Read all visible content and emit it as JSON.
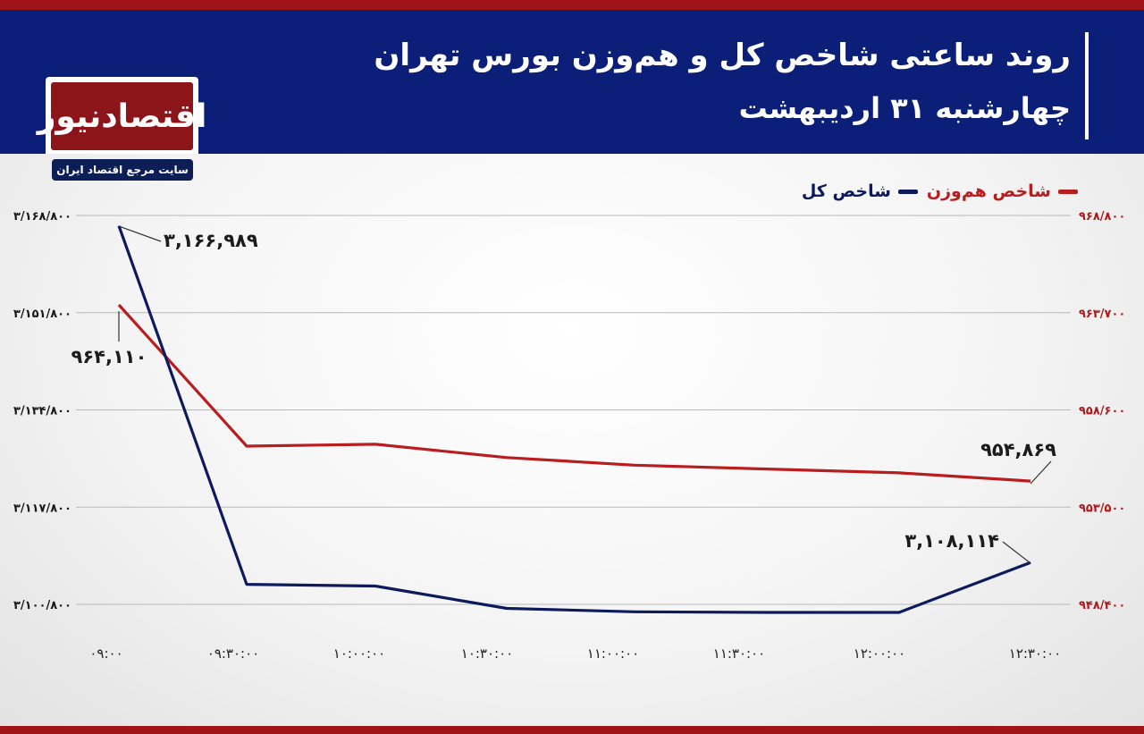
{
  "header": {
    "title": "روند ساعتی شاخص کل و هم‌وزن بورس تهران",
    "subtitle": "چهارشنبه ۳۱ اردیبهشت"
  },
  "logo": {
    "name": "اقتصادنیوز",
    "tagline": "سایت مرجع اقتصاد ایران"
  },
  "colors": {
    "header": "#0b1f78",
    "accent": "#a01418",
    "total_index": "#0d1a5c",
    "equal_weight": "#b81d20"
  },
  "legend": {
    "equal_weight": "شاخص هم‌وزن",
    "total_index": "شاخص کل"
  },
  "chart_data": {
    "type": "line",
    "x": [
      "۰۹:۰۰",
      "۰۹:۳۰:۰۰",
      "۱۰:۰۰:۰۰",
      "۱۰:۳۰:۰۰",
      "۱۱:۰۰:۰۰",
      "۱۱:۳۰:۰۰",
      "۱۲:۰۰:۰۰",
      "۱۲:۳۰:۰۰"
    ],
    "series": [
      {
        "name": "شاخص کل",
        "axis": "left",
        "color": "#0d1a5c",
        "values": [
          3166989,
          3104300,
          3104000,
          3100100,
          3099500,
          3099400,
          3099400,
          3108114
        ]
      },
      {
        "name": "شاخص هم‌وزن",
        "axis": "right",
        "color": "#b81d20",
        "values": [
          964110,
          956700,
          956800,
          956100,
          955700,
          955500,
          955300,
          954869
        ]
      }
    ],
    "left_axis": {
      "ylim": [
        3100800,
        3168800
      ],
      "ticks": [
        3100800,
        3117800,
        3134800,
        3151800,
        3168800
      ],
      "tick_labels": [
        "۳/۱۰۰/۸۰۰",
        "۳/۱۱۷/۸۰۰",
        "۳/۱۳۴/۸۰۰",
        "۳/۱۵۱/۸۰۰",
        "۳/۱۶۸/۸۰۰"
      ]
    },
    "right_axis": {
      "ylim": [
        948400,
        968800
      ],
      "ticks": [
        948400,
        953500,
        958600,
        963700,
        968800
      ],
      "tick_labels": [
        "۹۴۸/۴۰۰",
        "۹۵۳/۵۰۰",
        "۹۵۸/۶۰۰",
        "۹۶۳/۷۰۰",
        "۹۶۸/۸۰۰"
      ]
    },
    "annotations": [
      {
        "series": 0,
        "point": 0,
        "text": "۳,۱۶۶,۹۸۹"
      },
      {
        "series": 1,
        "point": 0,
        "text": "۹۶۴,۱۱۰"
      },
      {
        "series": 1,
        "point": 7,
        "text": "۹۵۴,۸۶۹"
      },
      {
        "series": 0,
        "point": 7,
        "text": "۳,۱۰۸,۱۱۴"
      }
    ],
    "grid": true,
    "legend_position": "top-right"
  }
}
